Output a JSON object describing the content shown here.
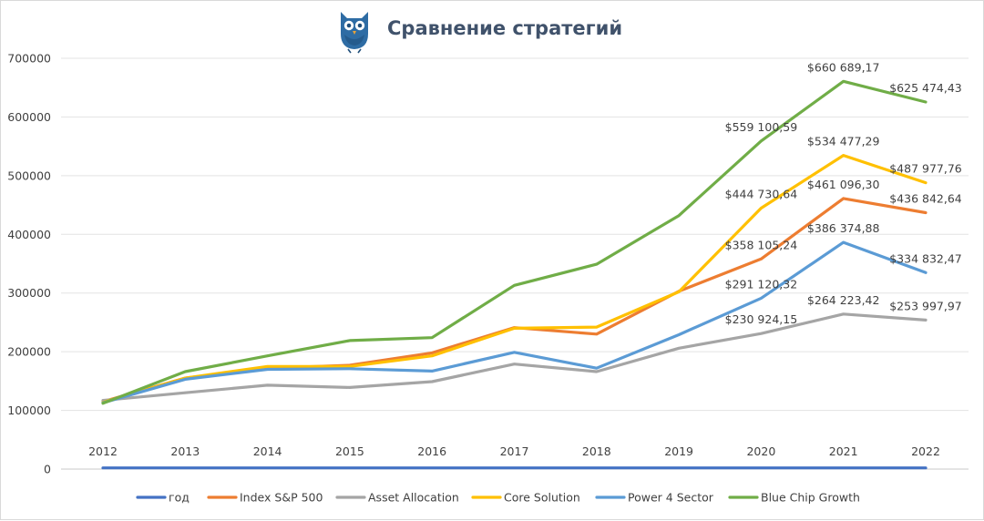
{
  "chart_data": {
    "type": "line",
    "title": "Сравнение стратегий",
    "xlabel": "",
    "ylabel": "",
    "ylim": [
      0,
      700000
    ],
    "yticks": [
      0,
      100000,
      200000,
      300000,
      400000,
      500000,
      600000,
      700000
    ],
    "ytick_labels": [
      "0",
      "100000",
      "200000",
      "300000",
      "400000",
      "500000",
      "600000",
      "700000"
    ],
    "grid": true,
    "legend_position": "bottom",
    "x": [
      "2012",
      "2013",
      "2014",
      "2015",
      "2016",
      "2017",
      "2018",
      "2019",
      "2020",
      "2021",
      "2022"
    ],
    "series": [
      {
        "name": "год",
        "color": "#4472c4",
        "values": [
          2012,
          2013,
          2014,
          2015,
          2016,
          2017,
          2018,
          2019,
          2020,
          2021,
          2022
        ],
        "labels": []
      },
      {
        "name": "Index S&P 500",
        "color": "#ed7d31",
        "values": [
          115000,
          155000,
          172000,
          177000,
          198000,
          241000,
          230000,
          303000,
          358105.24,
          461096.3,
          436842.64
        ],
        "labels": [
          {
            "index": 8,
            "text": "$358 105,24"
          },
          {
            "index": 9,
            "text": "$461 096,30"
          },
          {
            "index": 10,
            "text": "$436 842,64"
          }
        ]
      },
      {
        "name": "Asset Allocation",
        "color": "#a5a5a5",
        "values": [
          117000,
          130000,
          143000,
          139000,
          149000,
          179000,
          166000,
          206000,
          230924.15,
          264223.42,
          253997.97
        ],
        "labels": [
          {
            "index": 8,
            "text": "$230 924,15"
          },
          {
            "index": 9,
            "text": "$264 223,42"
          },
          {
            "index": 10,
            "text": "$253 997,97"
          }
        ]
      },
      {
        "name": "Core Solution",
        "color": "#ffc000",
        "values": [
          114000,
          155000,
          175000,
          175000,
          193000,
          240000,
          242000,
          302000,
          444730.64,
          534477.29,
          487977.76
        ],
        "labels": [
          {
            "index": 8,
            "text": "$444 730,64"
          },
          {
            "index": 9,
            "text": "$534 477,29"
          },
          {
            "index": 10,
            "text": "$487 977,76"
          }
        ]
      },
      {
        "name": "Power 4 Sector",
        "color": "#5b9bd5",
        "values": [
          113000,
          153000,
          170000,
          171000,
          167000,
          199000,
          172000,
          229000,
          291120.32,
          386374.88,
          334832.47
        ],
        "labels": [
          {
            "index": 8,
            "text": "$291 120,32"
          },
          {
            "index": 9,
            "text": "$386 374,88"
          },
          {
            "index": 10,
            "text": "$334 832,47"
          }
        ]
      },
      {
        "name": "Blue Chip Growth",
        "color": "#70ad47",
        "values": [
          112000,
          166000,
          193000,
          219000,
          224000,
          313000,
          349000,
          432000,
          559100.59,
          660689.17,
          625474.43
        ],
        "labels": [
          {
            "index": 8,
            "text": "$559 100,59"
          },
          {
            "index": 9,
            "text": "$660 689,17"
          },
          {
            "index": 10,
            "text": "$625 474,43"
          }
        ]
      }
    ]
  },
  "logo": {
    "icon": "owl-icon",
    "colors": {
      "body": "#2e6ca4",
      "accent": "#1f4e7a",
      "eyes": "#ffffff"
    }
  },
  "frame": {
    "grid_color": "#e3e3e3",
    "axis_color": "#c9c9c9",
    "text_color": "#404040",
    "title_color": "#40526b"
  }
}
